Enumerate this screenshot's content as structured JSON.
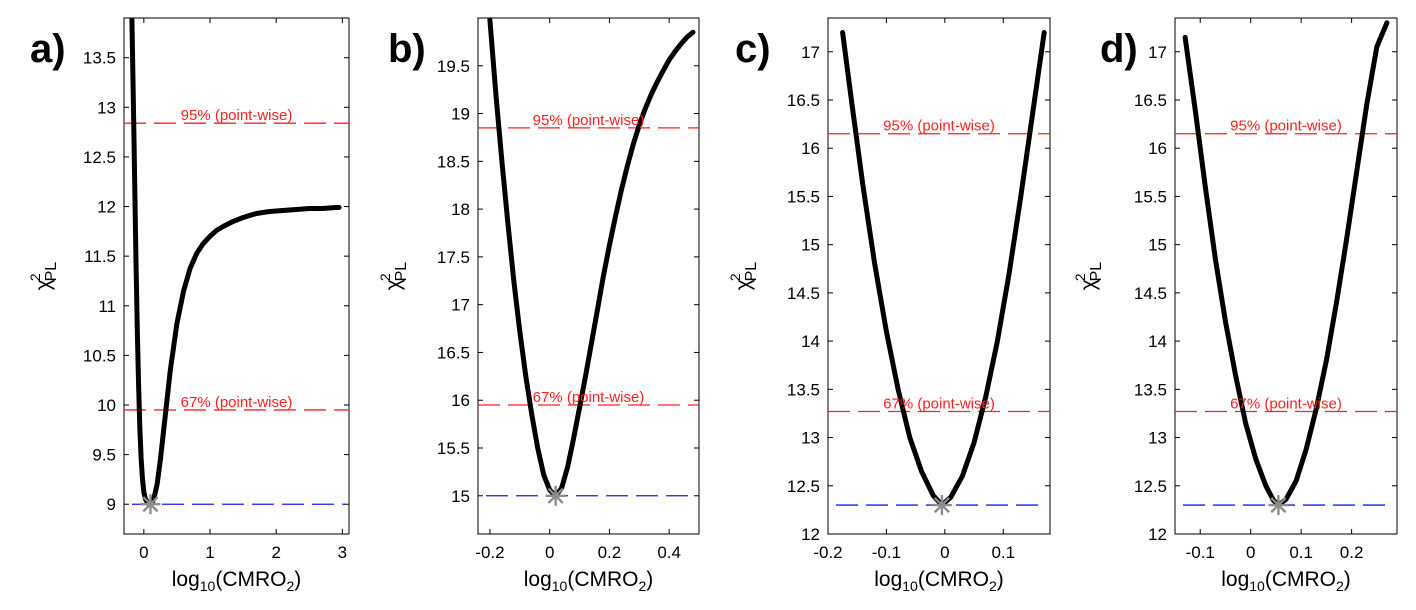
{
  "colors": {
    "curve": "#000000",
    "threshold_line": "#ff2020",
    "minimum_line": "#1a1aff",
    "minimum_marker": "#8c8c8c",
    "axes": "#000000"
  },
  "chart_data": [
    {
      "type": "line",
      "panel_label": "a)",
      "xlabel": {
        "base": "log",
        "base_sub": "10",
        "main": "(CMRO",
        "main_sub": "2",
        "close": ")"
      },
      "ylabel": {
        "base": "χ",
        "sup": "2",
        "sub": "PL"
      },
      "xlim": [
        -0.3,
        3.1
      ],
      "ylim": [
        8.7,
        13.9
      ],
      "xticks": [
        0,
        1,
        2,
        3
      ],
      "xtick_labels": [
        "0",
        "1",
        "2",
        "3"
      ],
      "yticks": [
        9,
        9.5,
        10,
        10.5,
        11,
        11.5,
        12,
        12.5,
        13,
        13.5
      ],
      "ytick_labels": [
        "9",
        "9.5",
        "10",
        "10.5",
        "11",
        "11.5",
        "12",
        "12.5",
        "13",
        "13.5"
      ],
      "thresholds": [
        {
          "label": "95% (point-wise)",
          "value": 12.84
        },
        {
          "label": "67% (point-wise)",
          "value": 9.95
        }
      ],
      "minimum_line": 9.0,
      "minimum_point": {
        "x": 0.1,
        "y": 9.0
      },
      "series": [
        {
          "x": [
            -0.18,
            -0.16,
            -0.14,
            -0.12,
            -0.1,
            -0.08,
            -0.06,
            -0.04,
            -0.02,
            0.0,
            0.02,
            0.05,
            0.08,
            0.1,
            0.13,
            0.16,
            0.2,
            0.25,
            0.3,
            0.35,
            0.4,
            0.5,
            0.6,
            0.7,
            0.8,
            0.9,
            1.0,
            1.1,
            1.2,
            1.35,
            1.5,
            1.7,
            1.9,
            2.1,
            2.3,
            2.5,
            2.7,
            2.9,
            2.95
          ],
          "y": [
            13.9,
            13.1,
            12.3,
            11.5,
            10.8,
            10.2,
            9.75,
            9.45,
            9.25,
            9.12,
            9.06,
            9.02,
            9.0,
            9.0,
            9.02,
            9.08,
            9.2,
            9.45,
            9.75,
            10.05,
            10.35,
            10.82,
            11.15,
            11.38,
            11.53,
            11.63,
            11.7,
            11.76,
            11.8,
            11.85,
            11.89,
            11.93,
            11.95,
            11.96,
            11.97,
            11.98,
            11.98,
            11.99,
            11.99
          ]
        }
      ]
    },
    {
      "type": "line",
      "panel_label": "b)",
      "xlabel": {
        "base": "log",
        "base_sub": "10",
        "main": "(CMRO",
        "main_sub": "2",
        "close": ")"
      },
      "ylabel": {
        "base": "χ",
        "sup": "2",
        "sub": "PL"
      },
      "xlim": [
        -0.24,
        0.5
      ],
      "ylim": [
        14.6,
        20.0
      ],
      "xticks": [
        -0.2,
        0,
        0.2,
        0.4
      ],
      "xtick_labels": [
        "-0.2",
        "0",
        "0.2",
        "0.4"
      ],
      "yticks": [
        15,
        15.5,
        16,
        16.5,
        17,
        17.5,
        18,
        18.5,
        19,
        19.5
      ],
      "ytick_labels": [
        "15",
        "15.5",
        "16",
        "16.5",
        "17",
        "17.5",
        "18",
        "18.5",
        "19",
        "19.5"
      ],
      "thresholds": [
        {
          "label": "95% (point-wise)",
          "value": 18.85
        },
        {
          "label": "67% (point-wise)",
          "value": 15.95
        }
      ],
      "minimum_line": 15.0,
      "minimum_point": {
        "x": 0.02,
        "y": 15.0
      },
      "series": [
        {
          "x": [
            -0.2,
            -0.18,
            -0.16,
            -0.14,
            -0.12,
            -0.1,
            -0.08,
            -0.06,
            -0.04,
            -0.02,
            0.0,
            0.02,
            0.04,
            0.06,
            0.08,
            0.1,
            0.12,
            0.14,
            0.16,
            0.18,
            0.2,
            0.22,
            0.24,
            0.26,
            0.28,
            0.3,
            0.32,
            0.34,
            0.36,
            0.38,
            0.4,
            0.42,
            0.44,
            0.46,
            0.48
          ],
          "y": [
            19.98,
            19.2,
            18.5,
            17.85,
            17.25,
            16.72,
            16.25,
            15.85,
            15.5,
            15.22,
            15.06,
            15.0,
            15.08,
            15.3,
            15.6,
            15.92,
            16.25,
            16.6,
            16.95,
            17.3,
            17.62,
            17.92,
            18.2,
            18.45,
            18.68,
            18.88,
            19.05,
            19.2,
            19.33,
            19.45,
            19.56,
            19.65,
            19.73,
            19.8,
            19.85
          ]
        }
      ]
    },
    {
      "type": "line",
      "panel_label": "c)",
      "xlabel": {
        "base": "log",
        "base_sub": "10",
        "main": "(CMRO",
        "main_sub": "2",
        "close": ")"
      },
      "ylabel": {
        "base": "χ",
        "sup": "2",
        "sub": "PL"
      },
      "xlim": [
        -0.2,
        0.18
      ],
      "ylim": [
        12.0,
        17.35
      ],
      "xticks": [
        -0.2,
        -0.1,
        0,
        0.1
      ],
      "xtick_labels": [
        "-0.2",
        "-0.1",
        "0",
        "0.1"
      ],
      "yticks": [
        12,
        12.5,
        13,
        13.5,
        14,
        14.5,
        15,
        15.5,
        16,
        16.5,
        17
      ],
      "ytick_labels": [
        "12",
        "12.5",
        "13",
        "13.5",
        "14",
        "14.5",
        "15",
        "15.5",
        "16",
        "16.5",
        "17"
      ],
      "thresholds": [
        {
          "label": "95% (point-wise)",
          "value": 16.15
        },
        {
          "label": "67% (point-wise)",
          "value": 13.27
        }
      ],
      "minimum_line": 12.3,
      "minimum_point": {
        "x": -0.005,
        "y": 12.3
      },
      "series": [
        {
          "x": [
            -0.175,
            -0.16,
            -0.14,
            -0.12,
            -0.1,
            -0.08,
            -0.06,
            -0.04,
            -0.02,
            -0.005,
            0.01,
            0.03,
            0.05,
            0.07,
            0.09,
            0.11,
            0.13,
            0.15,
            0.17
          ],
          "y": [
            17.2,
            16.5,
            15.6,
            14.8,
            14.1,
            13.5,
            13.0,
            12.65,
            12.4,
            12.3,
            12.38,
            12.6,
            12.95,
            13.42,
            14.0,
            14.7,
            15.5,
            16.35,
            17.2
          ]
        }
      ]
    },
    {
      "type": "line",
      "panel_label": "d)",
      "xlabel": {
        "base": "log",
        "base_sub": "10",
        "main": "(CMRO",
        "main_sub": "2",
        "close": ")"
      },
      "ylabel": {
        "base": "χ",
        "sup": "2",
        "sub": "PL"
      },
      "xlim": [
        -0.15,
        0.29
      ],
      "ylim": [
        12.0,
        17.35
      ],
      "xticks": [
        -0.1,
        0,
        0.1,
        0.2
      ],
      "xtick_labels": [
        "-0.1",
        "0",
        "0.1",
        "0.2"
      ],
      "yticks": [
        12,
        12.5,
        13,
        13.5,
        14,
        14.5,
        15,
        15.5,
        16,
        16.5,
        17
      ],
      "ytick_labels": [
        "12",
        "12.5",
        "13",
        "13.5",
        "14",
        "14.5",
        "15",
        "15.5",
        "16",
        "16.5",
        "17"
      ],
      "thresholds": [
        {
          "label": "95% (point-wise)",
          "value": 16.15
        },
        {
          "label": "67% (point-wise)",
          "value": 13.27
        }
      ],
      "minimum_line": 12.3,
      "minimum_point": {
        "x": 0.055,
        "y": 12.3
      },
      "series": [
        {
          "x": [
            -0.13,
            -0.11,
            -0.09,
            -0.07,
            -0.05,
            -0.03,
            -0.01,
            0.01,
            0.03,
            0.045,
            0.055,
            0.07,
            0.09,
            0.11,
            0.13,
            0.15,
            0.17,
            0.19,
            0.21,
            0.23,
            0.25,
            0.27
          ],
          "y": [
            17.15,
            16.4,
            15.6,
            14.85,
            14.2,
            13.65,
            13.15,
            12.78,
            12.5,
            12.35,
            12.3,
            12.36,
            12.55,
            12.88,
            13.3,
            13.8,
            14.4,
            15.05,
            15.75,
            16.45,
            17.05,
            17.3
          ]
        }
      ]
    }
  ]
}
